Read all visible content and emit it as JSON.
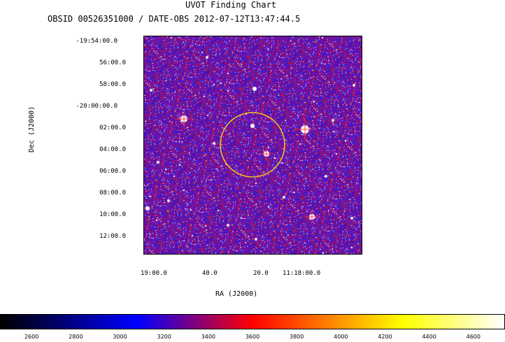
{
  "header": {
    "title": "UVOT Finding Chart",
    "subtitle": "OBSID 00526351000 / DATE-OBS 2012-07-12T13:47:44.5"
  },
  "axes": {
    "dec_label": "Dec (J2000)",
    "ra_label": "RA (J2000)",
    "dec_ticks": [
      "-19:54:00.0",
      "56:00.0",
      "58:00.0",
      "-20:00:00.0",
      "02:00.0",
      "04:00.0",
      "06:00.0",
      "08:00.0",
      "10:00.0",
      "12:00.0"
    ],
    "ra_ticks": [
      "19:00.0",
      "40.0",
      "20.0",
      "11:18:00.0"
    ]
  },
  "colorbar": {
    "ticks": [
      "2600",
      "2800",
      "3000",
      "3200",
      "3400",
      "3600",
      "3800",
      "4000",
      "4200",
      "4400",
      "4600"
    ],
    "range": [
      2460,
      4740
    ]
  },
  "colors": {
    "circle": "#f0c020",
    "low": "#000000",
    "mid": "#0000ff",
    "high_red": "#ff0000",
    "high_yellow": "#ffff00",
    "top": "#ffffff"
  }
}
